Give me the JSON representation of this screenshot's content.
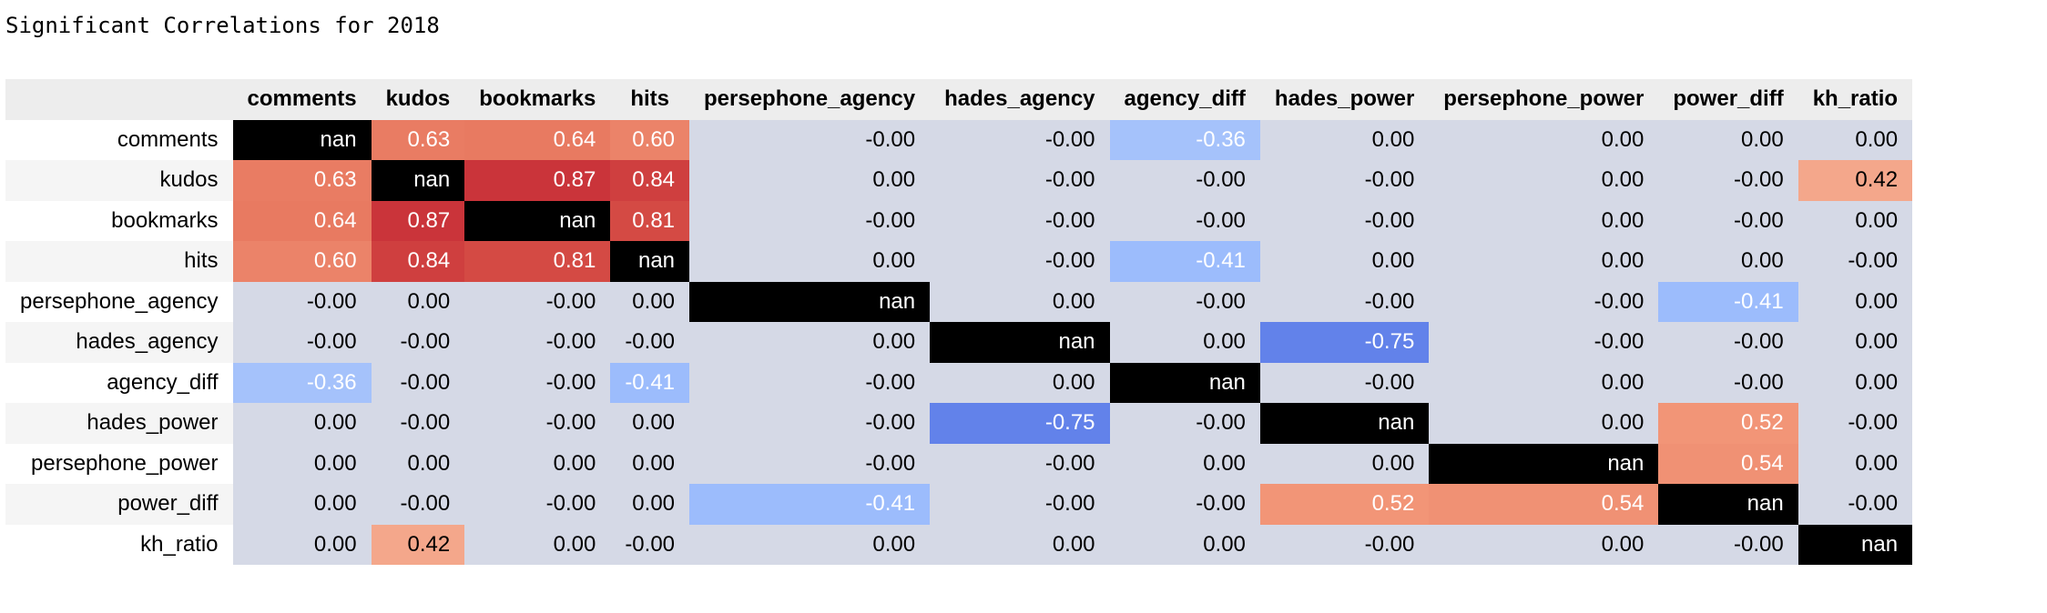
{
  "title": "Significant Correlations for 2018",
  "chart_data": {
    "type": "heatmap",
    "title": "Significant Correlations for 2018",
    "columns": [
      "comments",
      "kudos",
      "bookmarks",
      "hits",
      "persephone_agency",
      "hades_agency",
      "agency_diff",
      "hades_power",
      "persephone_power",
      "power_diff",
      "kh_ratio"
    ],
    "rows": [
      "comments",
      "kudos",
      "bookmarks",
      "hits",
      "persephone_agency",
      "hades_agency",
      "agency_diff",
      "hades_power",
      "persephone_power",
      "power_diff",
      "kh_ratio"
    ],
    "values": [
      [
        "nan",
        "0.63",
        "0.64",
        "0.60",
        "-0.00",
        "-0.00",
        "-0.36",
        "0.00",
        "0.00",
        "0.00",
        "0.00"
      ],
      [
        "0.63",
        "nan",
        "0.87",
        "0.84",
        "0.00",
        "-0.00",
        "-0.00",
        "-0.00",
        "0.00",
        "-0.00",
        "0.42"
      ],
      [
        "0.64",
        "0.87",
        "nan",
        "0.81",
        "-0.00",
        "-0.00",
        "-0.00",
        "-0.00",
        "0.00",
        "-0.00",
        "0.00"
      ],
      [
        "0.60",
        "0.84",
        "0.81",
        "nan",
        "0.00",
        "-0.00",
        "-0.41",
        "0.00",
        "0.00",
        "0.00",
        "-0.00"
      ],
      [
        "-0.00",
        "0.00",
        "-0.00",
        "0.00",
        "nan",
        "0.00",
        "-0.00",
        "-0.00",
        "-0.00",
        "-0.41",
        "0.00"
      ],
      [
        "-0.00",
        "-0.00",
        "-0.00",
        "-0.00",
        "0.00",
        "nan",
        "0.00",
        "-0.75",
        "-0.00",
        "-0.00",
        "0.00"
      ],
      [
        "-0.36",
        "-0.00",
        "-0.00",
        "-0.41",
        "-0.00",
        "0.00",
        "nan",
        "-0.00",
        "0.00",
        "-0.00",
        "0.00"
      ],
      [
        "0.00",
        "-0.00",
        "-0.00",
        "0.00",
        "-0.00",
        "-0.75",
        "-0.00",
        "nan",
        "0.00",
        "0.52",
        "-0.00"
      ],
      [
        "0.00",
        "0.00",
        "0.00",
        "0.00",
        "-0.00",
        "-0.00",
        "0.00",
        "0.00",
        "nan",
        "0.54",
        "0.00"
      ],
      [
        "0.00",
        "-0.00",
        "-0.00",
        "0.00",
        "-0.41",
        "-0.00",
        "-0.00",
        "0.52",
        "0.54",
        "nan",
        "-0.00"
      ],
      [
        "0.00",
        "0.42",
        "0.00",
        "-0.00",
        "0.00",
        "0.00",
        "0.00",
        "-0.00",
        "0.00",
        "-0.00",
        "nan"
      ]
    ],
    "vmin": -1,
    "vmax": 1,
    "colormap": "coolwarm",
    "nan_color": "#000000",
    "neutral_color": "#d5d9e6"
  }
}
